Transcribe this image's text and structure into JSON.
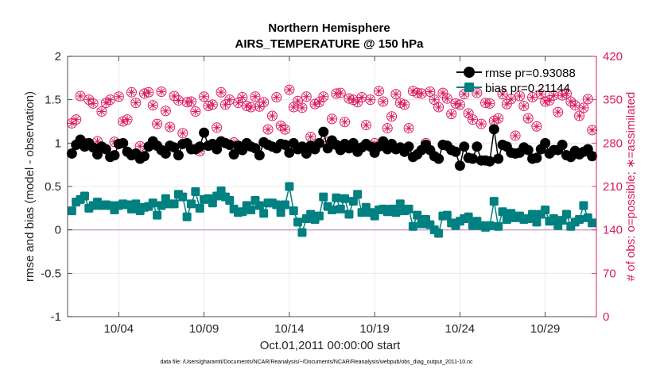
{
  "chart_data": {
    "type": "line",
    "title": [
      "Northern Hemisphere",
      "AIRS_TEMPERATURE @ 150 hPa"
    ],
    "xlabel": "Oct.01,2011 00:00:00 start",
    "ylabel": "rmse and bias (model - observation)",
    "y2label": "# of obs: o=possible; ∗=assimilated",
    "footnote": "data file: /Users/gharamti/Documents/NCAR/Reanalysis/~/Documents/NCAR/Reanalysis/webpub/obs_diag_output_2011-10.nc",
    "x_unit": "day of October 2011",
    "xlim": [
      1.0,
      32.0
    ],
    "ylim": [
      -1,
      2
    ],
    "y2lim": [
      0,
      420
    ],
    "xticks": [
      4,
      9,
      14,
      19,
      24,
      29
    ],
    "xtick_labels": [
      "10/04",
      "10/09",
      "10/14",
      "10/19",
      "10/24",
      "10/29"
    ],
    "yticks": [
      -1,
      -0.5,
      0,
      0.5,
      1,
      1.5,
      2
    ],
    "ytick_labels": [
      "-1",
      "-0.5",
      "0",
      "0.5",
      "1",
      "1.5",
      "2"
    ],
    "y2ticks": [
      0,
      70,
      140,
      210,
      280,
      350,
      420
    ],
    "y2tick_labels": [
      "0",
      "70",
      "140",
      "210",
      "280",
      "350",
      "420"
    ],
    "grid": true,
    "legend_position": "top-right",
    "colors": {
      "rmse": "#000000",
      "bias": "#008080",
      "obs": "#d81b60",
      "zero_line": "#c8a2c8"
    },
    "series": [
      {
        "name": "rmse pr=0.93088",
        "axis": "left",
        "marker": "circle",
        "x": [
          1.25,
          1.5,
          1.75,
          2.0,
          2.25,
          2.5,
          2.75,
          3.0,
          3.25,
          3.5,
          3.75,
          4.0,
          4.25,
          4.5,
          4.75,
          5.0,
          5.25,
          5.5,
          5.75,
          6.0,
          6.25,
          6.5,
          6.75,
          7.0,
          7.25,
          7.5,
          7.75,
          8.0,
          8.25,
          8.5,
          8.75,
          9.0,
          9.25,
          9.5,
          9.75,
          10.0,
          10.25,
          10.5,
          10.75,
          11.0,
          11.25,
          11.5,
          11.75,
          12.0,
          12.25,
          12.5,
          12.75,
          13.0,
          13.25,
          13.5,
          13.75,
          14.0,
          14.25,
          14.5,
          14.75,
          15.0,
          15.25,
          15.5,
          15.75,
          16.0,
          16.25,
          16.5,
          16.75,
          17.0,
          17.25,
          17.5,
          17.75,
          18.0,
          18.25,
          18.5,
          18.75,
          19.0,
          19.25,
          19.5,
          19.75,
          20.0,
          20.25,
          20.5,
          20.75,
          21.0,
          21.25,
          21.5,
          21.75,
          22.0,
          22.25,
          22.5,
          22.75,
          23.0,
          23.25,
          23.5,
          23.75,
          24.0,
          24.25,
          24.5,
          24.75,
          25.0,
          25.25,
          25.5,
          25.75,
          26.0,
          26.25,
          26.5,
          26.75,
          27.0,
          27.25,
          27.5,
          27.75,
          28.0,
          28.25,
          28.5,
          28.75,
          29.0,
          29.25,
          29.5,
          29.75,
          30.0,
          30.25,
          30.5,
          30.75,
          31.0,
          31.25,
          31.5,
          31.75
        ],
        "y": [
          0.88,
          0.98,
          1.04,
          0.96,
          1.0,
          0.95,
          0.87,
          0.96,
          0.93,
          0.84,
          0.86,
          0.99,
          1.0,
          0.9,
          0.86,
          0.88,
          0.82,
          0.85,
          0.96,
          1.02,
          0.97,
          0.92,
          0.88,
          0.97,
          0.95,
          0.86,
          0.99,
          1.0,
          0.93,
          0.93,
          0.96,
          1.12,
          0.97,
          0.99,
          0.93,
          1.02,
          1.0,
          0.98,
          0.87,
          0.97,
          0.92,
          1.0,
          0.96,
          0.94,
          0.86,
          1.01,
          0.98,
          0.96,
          0.94,
          0.99,
          0.98,
          0.89,
          1.0,
          0.93,
          0.96,
          0.88,
          0.97,
          0.93,
          1.0,
          1.13,
          0.94,
          1.03,
          0.98,
          0.92,
          0.99,
          0.94,
          1.0,
          0.9,
          0.95,
          0.99,
          0.96,
          0.89,
          0.96,
          1.02,
          0.93,
          0.99,
          0.93,
          0.95,
          0.9,
          0.96,
          0.84,
          0.87,
          0.92,
          0.98,
          0.92,
          0.85,
          0.82,
          0.98,
          0.97,
          0.92,
          0.9,
          0.74,
          0.96,
          0.83,
          0.82,
          0.96,
          0.8,
          0.8,
          0.79,
          1.16,
          0.82,
          0.98,
          0.96,
          0.89,
          0.88,
          0.89,
          0.95,
          0.92,
          0.82,
          0.83,
          0.93,
          1.0,
          0.88,
          0.92,
          0.92,
          0.98,
          0.86,
          0.84,
          0.91,
          0.87,
          0.9,
          0.93,
          0.85
        ]
      },
      {
        "name": "bias pr=0.21144",
        "axis": "left",
        "marker": "square",
        "x": [
          1.25,
          1.5,
          1.75,
          2.0,
          2.25,
          2.5,
          2.75,
          3.0,
          3.25,
          3.5,
          3.75,
          4.0,
          4.25,
          4.5,
          4.75,
          5.0,
          5.25,
          5.5,
          5.75,
          6.0,
          6.25,
          6.5,
          6.75,
          7.0,
          7.25,
          7.5,
          7.75,
          8.0,
          8.25,
          8.5,
          8.75,
          9.0,
          9.25,
          9.5,
          9.75,
          10.0,
          10.25,
          10.5,
          10.75,
          11.0,
          11.25,
          11.5,
          11.75,
          12.0,
          12.25,
          12.5,
          12.75,
          13.0,
          13.25,
          13.5,
          13.75,
          14.0,
          14.25,
          14.5,
          14.75,
          15.0,
          15.25,
          15.5,
          15.75,
          16.0,
          16.25,
          16.5,
          16.75,
          17.0,
          17.25,
          17.5,
          17.75,
          18.0,
          18.25,
          18.5,
          18.75,
          19.0,
          19.25,
          19.5,
          19.75,
          20.0,
          20.25,
          20.5,
          20.75,
          21.0,
          21.25,
          21.5,
          21.75,
          22.0,
          22.25,
          22.5,
          22.75,
          23.0,
          23.25,
          23.5,
          23.75,
          24.0,
          24.25,
          24.5,
          24.75,
          25.0,
          25.25,
          25.5,
          25.75,
          26.0,
          26.25,
          26.5,
          26.75,
          27.0,
          27.25,
          27.5,
          27.75,
          28.0,
          28.25,
          28.5,
          28.75,
          29.0,
          29.25,
          29.5,
          29.75,
          30.0,
          30.25,
          30.5,
          30.75,
          31.0,
          31.25,
          31.5,
          31.75
        ],
        "y": [
          0.22,
          0.32,
          0.35,
          0.39,
          0.25,
          0.28,
          0.32,
          0.28,
          0.29,
          0.28,
          0.23,
          0.28,
          0.3,
          0.29,
          0.24,
          0.3,
          0.22,
          0.26,
          0.27,
          0.31,
          0.17,
          0.28,
          0.36,
          0.3,
          0.3,
          0.41,
          0.38,
          0.15,
          0.3,
          0.44,
          0.25,
          0.35,
          0.36,
          0.31,
          0.39,
          0.45,
          0.38,
          0.34,
          0.24,
          0.2,
          0.21,
          0.28,
          0.23,
          0.34,
          0.28,
          0.19,
          0.31,
          0.31,
          0.29,
          0.2,
          0.29,
          0.5,
          0.22,
          0.09,
          -0.03,
          0.13,
          0.18,
          0.12,
          0.16,
          0.38,
          0.27,
          0.23,
          0.37,
          0.24,
          0.36,
          0.18,
          0.33,
          0.41,
          0.2,
          0.26,
          0.2,
          0.16,
          0.23,
          0.24,
          0.21,
          0.24,
          0.2,
          0.3,
          0.22,
          0.24,
          0.04,
          0.17,
          0.07,
          0.12,
          0.06,
          0.0,
          -0.04,
          0.16,
          0.17,
          0.08,
          0.05,
          0.1,
          0.13,
          0.15,
          0.05,
          0.1,
          0.05,
          0.03,
          0.05,
          0.33,
          0.04,
          0.21,
          0.12,
          0.19,
          0.14,
          0.16,
          0.12,
          0.13,
          0.18,
          0.09,
          0.18,
          0.23,
          0.1,
          0.13,
          0.05,
          0.11,
          0.18,
          0.04,
          0.09,
          0.12,
          0.28,
          0.14,
          0.08
        ]
      },
      {
        "name": "obs possible",
        "axis": "right",
        "marker": "circle-star",
        "x": [
          1.25,
          1.5,
          1.75,
          2.0,
          2.25,
          2.5,
          2.75,
          3.0,
          3.25,
          3.5,
          3.75,
          4.0,
          4.25,
          4.5,
          4.75,
          5.0,
          5.25,
          5.5,
          5.75,
          6.0,
          6.25,
          6.5,
          6.75,
          7.0,
          7.25,
          7.5,
          7.75,
          8.0,
          8.25,
          8.5,
          8.75,
          9.0,
          9.25,
          9.5,
          9.75,
          10.0,
          10.25,
          10.5,
          10.75,
          11.0,
          11.25,
          11.5,
          11.75,
          12.0,
          12.25,
          12.5,
          12.75,
          13.0,
          13.25,
          13.5,
          13.75,
          14.0,
          14.25,
          14.5,
          14.75,
          15.0,
          15.25,
          15.5,
          15.75,
          16.0,
          16.25,
          16.5,
          16.75,
          17.0,
          17.25,
          17.5,
          17.75,
          18.0,
          18.25,
          18.5,
          18.75,
          19.0,
          19.25,
          19.5,
          19.75,
          20.0,
          20.25,
          20.5,
          20.75,
          21.0,
          21.25,
          21.5,
          21.75,
          22.0,
          22.25,
          22.5,
          22.75,
          23.0,
          23.25,
          23.5,
          23.75,
          24.0,
          24.25,
          24.5,
          24.75,
          25.0,
          25.25,
          25.5,
          25.75,
          26.0,
          26.25,
          26.5,
          26.75,
          27.0,
          27.25,
          27.5,
          27.75,
          28.0,
          28.25,
          28.5,
          28.75,
          29.0,
          29.25,
          29.5,
          29.75,
          30.0,
          30.25,
          30.5,
          30.75,
          31.0,
          31.25,
          31.5,
          31.75
        ],
        "y": [
          312,
          318,
          356,
          280,
          350,
          344,
          283,
          331,
          345,
          350,
          282,
          355,
          315,
          318,
          362,
          345,
          275,
          360,
          362,
          341,
          311,
          363,
          332,
          306,
          356,
          349,
          296,
          346,
          347,
          331,
          267,
          355,
          340,
          342,
          305,
          362,
          342,
          350,
          281,
          345,
          354,
          340,
          338,
          355,
          339,
          346,
          302,
          324,
          354,
          308,
          302,
          366,
          338,
          348,
          337,
          355,
          290,
          343,
          346,
          355,
          282,
          319,
          360,
          361,
          314,
          352,
          350,
          346,
          354,
          309,
          350,
          280,
          364,
          347,
          304,
          323,
          359,
          345,
          342,
          304,
          364,
          361,
          360,
          280,
          363,
          350,
          338,
          361,
          352,
          327,
          344,
          342,
          359,
          328,
          318,
          361,
          311,
          345,
          344,
          316,
          320,
          359,
          343,
          351,
          292,
          356,
          340,
          320,
          354,
          307,
          359,
          347,
          349,
          357,
          330,
          357,
          360,
          347,
          341,
          324,
          337,
          351,
          301
        ]
      },
      {
        "name": "obs assimilated",
        "axis": "right",
        "marker": "asterisk",
        "x": [
          1.25,
          1.5,
          1.75,
          2.0,
          2.25,
          2.5,
          2.75,
          3.0,
          3.25,
          3.5,
          3.75,
          4.0,
          4.25,
          4.5,
          4.75,
          5.0,
          5.25,
          5.5,
          5.75,
          6.0,
          6.25,
          6.5,
          6.75,
          7.0,
          7.25,
          7.5,
          7.75,
          8.0,
          8.25,
          8.5,
          8.75,
          9.0,
          9.25,
          9.5,
          9.75,
          10.0,
          10.25,
          10.5,
          10.75,
          11.0,
          11.25,
          11.5,
          11.75,
          12.0,
          12.25,
          12.5,
          12.75,
          13.0,
          13.25,
          13.5,
          13.75,
          14.0,
          14.25,
          14.5,
          14.75,
          15.0,
          15.25,
          15.5,
          15.75,
          16.0,
          16.25,
          16.5,
          16.75,
          17.0,
          17.25,
          17.5,
          17.75,
          18.0,
          18.25,
          18.5,
          18.75,
          19.0,
          19.25,
          19.5,
          19.75,
          20.0,
          20.25,
          20.5,
          20.75,
          21.0,
          21.25,
          21.5,
          21.75,
          22.0,
          22.25,
          22.5,
          22.75,
          23.0,
          23.25,
          23.5,
          23.75,
          24.0,
          24.25,
          24.5,
          24.75,
          25.0,
          25.25,
          25.5,
          25.75,
          26.0,
          26.25,
          26.5,
          26.75,
          27.0,
          27.25,
          27.5,
          27.75,
          28.0,
          28.25,
          28.5,
          28.75,
          29.0,
          29.25,
          29.5,
          29.75,
          30.0,
          30.25,
          30.5,
          30.75,
          31.0,
          31.25,
          31.5,
          31.75
        ],
        "y": [
          312,
          318,
          356,
          280,
          350,
          344,
          283,
          331,
          345,
          350,
          282,
          355,
          315,
          318,
          362,
          345,
          275,
          360,
          362,
          341,
          311,
          363,
          332,
          306,
          356,
          349,
          296,
          346,
          347,
          331,
          267,
          355,
          340,
          342,
          305,
          362,
          342,
          350,
          281,
          345,
          354,
          340,
          338,
          355,
          339,
          346,
          302,
          324,
          354,
          308,
          302,
          366,
          338,
          348,
          337,
          355,
          290,
          343,
          346,
          355,
          282,
          319,
          360,
          361,
          314,
          352,
          350,
          346,
          354,
          309,
          350,
          280,
          364,
          347,
          304,
          323,
          359,
          345,
          342,
          304,
          364,
          361,
          360,
          280,
          363,
          350,
          338,
          361,
          352,
          327,
          344,
          342,
          359,
          328,
          318,
          361,
          311,
          345,
          344,
          316,
          320,
          359,
          343,
          351,
          292,
          356,
          340,
          320,
          354,
          307,
          359,
          347,
          349,
          357,
          330,
          357,
          360,
          347,
          341,
          324,
          337,
          351,
          301
        ]
      }
    ]
  }
}
